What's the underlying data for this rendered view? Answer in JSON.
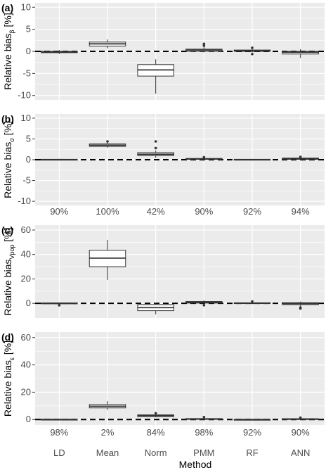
{
  "chart_data": [
    {
      "type": "boxplot",
      "panel_label": "(a)",
      "ylabel_main": "Relative bias",
      "ylabel_sub": "β",
      "ylabel_unit": " [%]",
      "ylim": [
        -11,
        11
      ],
      "yticks": [
        -10,
        -5,
        0,
        5,
        10
      ],
      "reference_line": 0,
      "percent_labels": [],
      "categories": [
        "LD",
        "Mean",
        "Norm",
        "PMM",
        "RF",
        "ANN"
      ],
      "boxes": [
        {
          "q1": -0.3,
          "median": -0.1,
          "q3": 0.0,
          "whisker_low": -0.6,
          "whisker_high": 0.3,
          "outliers": []
        },
        {
          "q1": 1.2,
          "median": 1.7,
          "q3": 2.1,
          "whisker_low": 0.7,
          "whisker_high": 2.7,
          "outliers": []
        },
        {
          "q1": -5.6,
          "median": -4.2,
          "q3": -3.0,
          "whisker_low": -9.6,
          "whisker_high": -1.8,
          "outliers": []
        },
        {
          "q1": 0.0,
          "median": 0.3,
          "q3": 0.5,
          "whisker_low": -0.2,
          "whisker_high": 1.0,
          "outliers": [
            1.3,
            1.7
          ]
        },
        {
          "q1": 0.0,
          "median": 0.1,
          "q3": 0.3,
          "whisker_low": -0.2,
          "whisker_high": 0.5,
          "outliers": [
            0.8,
            -0.6
          ]
        },
        {
          "q1": -0.6,
          "median": -0.2,
          "q3": 0.0,
          "whisker_low": -1.5,
          "whisker_high": 0.5,
          "outliers": []
        }
      ]
    },
    {
      "type": "boxplot",
      "panel_label": "(b)",
      "ylabel_main": "Relative bias",
      "ylabel_sub": "σ",
      "ylabel_unit": " [%]",
      "ylim": [
        -11,
        11
      ],
      "yticks": [
        -10,
        -5,
        0,
        5,
        10
      ],
      "reference_line": 0,
      "percent_labels": [
        "90%",
        "100%",
        "42%",
        "90%",
        "92%",
        "94%"
      ],
      "categories": [
        "LD",
        "Mean",
        "Norm",
        "PMM",
        "RF",
        "ANN"
      ],
      "boxes": [
        {
          "q1": -0.1,
          "median": 0.0,
          "q3": 0.1,
          "whisker_low": -0.2,
          "whisker_high": 0.2,
          "outliers": []
        },
        {
          "q1": 3.2,
          "median": 3.5,
          "q3": 3.8,
          "whisker_low": 2.9,
          "whisker_high": 4.1,
          "outliers": [
            4.4
          ]
        },
        {
          "q1": 1.0,
          "median": 1.3,
          "q3": 1.7,
          "whisker_low": 0.5,
          "whisker_high": 2.2,
          "outliers": [
            2.8,
            4.4
          ]
        },
        {
          "q1": 0.1,
          "median": 0.2,
          "q3": 0.3,
          "whisker_low": -0.1,
          "whisker_high": 0.5,
          "outliers": [
            0.6
          ]
        },
        {
          "q1": -0.1,
          "median": 0.0,
          "q3": 0.1,
          "whisker_low": -0.2,
          "whisker_high": 0.2,
          "outliers": []
        },
        {
          "q1": 0.1,
          "median": 0.2,
          "q3": 0.4,
          "whisker_low": -0.1,
          "whisker_high": 0.6,
          "outliers": [
            0.7
          ]
        }
      ]
    },
    {
      "type": "boxplot",
      "panel_label": "(c)",
      "ylabel_main": "Relative bias",
      "ylabel_sub": "Vpop",
      "ylabel_unit": " [%]",
      "ylim": [
        -12,
        64
      ],
      "yticks": [
        0,
        20,
        40,
        60
      ],
      "reference_line": 0,
      "percent_labels": [],
      "categories": [
        "LD",
        "Mean",
        "Norm",
        "PMM",
        "RF",
        "ANN"
      ],
      "boxes": [
        {
          "q1": -0.4,
          "median": 0.0,
          "q3": 0.4,
          "whisker_low": -0.8,
          "whisker_high": 0.7,
          "outliers": [
            -1.6
          ]
        },
        {
          "q1": 30.0,
          "median": 37.0,
          "q3": 43.5,
          "whisker_low": 19.0,
          "whisker_high": 52.0,
          "outliers": []
        },
        {
          "q1": -6.0,
          "median": -3.5,
          "q3": -1.0,
          "whisker_low": -9.0,
          "whisker_high": 0.5,
          "outliers": []
        },
        {
          "q1": 0.2,
          "median": 0.9,
          "q3": 1.5,
          "whisker_low": -0.5,
          "whisker_high": 2.5,
          "outliers": [
            -1.5
          ]
        },
        {
          "q1": -0.2,
          "median": 0.1,
          "q3": 0.5,
          "whisker_low": -0.7,
          "whisker_high": 1.0,
          "outliers": [
            1.6
          ]
        },
        {
          "q1": -1.0,
          "median": -0.2,
          "q3": 0.6,
          "whisker_low": -2.5,
          "whisker_high": 1.5,
          "outliers": [
            -3.5,
            -4.2
          ]
        }
      ]
    },
    {
      "type": "boxplot",
      "panel_label": "(d)",
      "ylabel_main": "Relative bias",
      "ylabel_sub": "ε",
      "ylabel_unit": " [%]",
      "ylim": [
        -4,
        64
      ],
      "yticks": [
        0,
        20,
        40,
        60
      ],
      "reference_line": 0,
      "percent_labels": [
        "98%",
        "2%",
        "84%",
        "98%",
        "92%",
        "90%"
      ],
      "categories": [
        "LD",
        "Mean",
        "Norm",
        "PMM",
        "RF",
        "ANN"
      ],
      "boxes": [
        {
          "q1": -0.2,
          "median": 0.0,
          "q3": 0.2,
          "whisker_low": -0.4,
          "whisker_high": 0.4,
          "outliers": []
        },
        {
          "q1": 8.5,
          "median": 9.7,
          "q3": 11.0,
          "whisker_low": 7.0,
          "whisker_high": 13.5,
          "outliers": []
        },
        {
          "q1": 2.2,
          "median": 2.8,
          "q3": 3.4,
          "whisker_low": 1.6,
          "whisker_high": 4.0,
          "outliers": [
            4.6
          ]
        },
        {
          "q1": 0.1,
          "median": 0.4,
          "q3": 0.7,
          "whisker_low": -0.2,
          "whisker_high": 1.1,
          "outliers": [
            1.8
          ]
        },
        {
          "q1": -0.1,
          "median": 0.0,
          "q3": 0.1,
          "whisker_low": -0.3,
          "whisker_high": 0.3,
          "outliers": []
        },
        {
          "q1": 0.0,
          "median": 0.3,
          "q3": 0.6,
          "whisker_low": -0.3,
          "whisker_high": 0.9,
          "outliers": [
            1.3
          ]
        }
      ]
    }
  ],
  "x_title": "Method",
  "colors": {
    "panel_bg": "#ebebeb",
    "grid": "#ffffff",
    "box_fill": "#ffffff",
    "box_stroke": "#333333"
  }
}
